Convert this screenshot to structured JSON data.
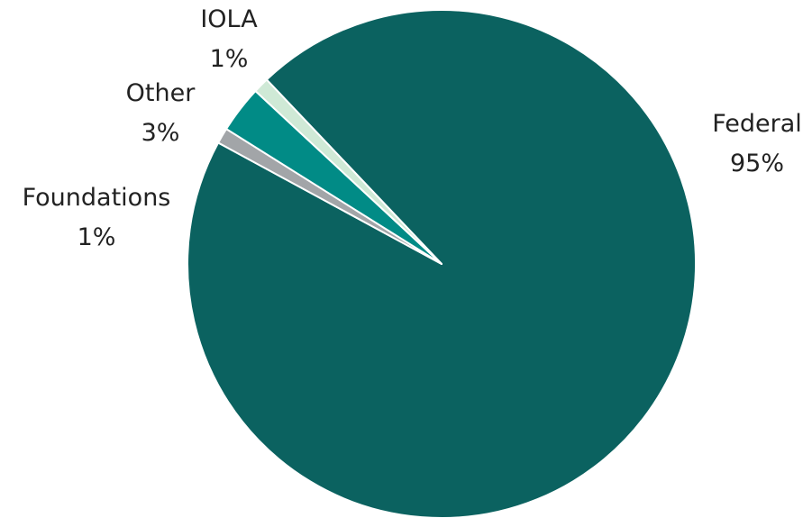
{
  "chart_data": {
    "type": "pie",
    "slices": [
      {
        "label": "Federal",
        "value": 95,
        "value_label": "95%",
        "color": "#0b6260"
      },
      {
        "label": "Foundations",
        "value": 1,
        "value_label": "1%",
        "color": "#a2a5a8"
      },
      {
        "label": "Other",
        "value": 3,
        "value_label": "3%",
        "color": "#018b86"
      },
      {
        "label": "IOLA",
        "value": 1,
        "value_label": "1%",
        "color": "#cfe9d6"
      }
    ],
    "legend": "none",
    "slice_border_color": "#ffffff"
  }
}
